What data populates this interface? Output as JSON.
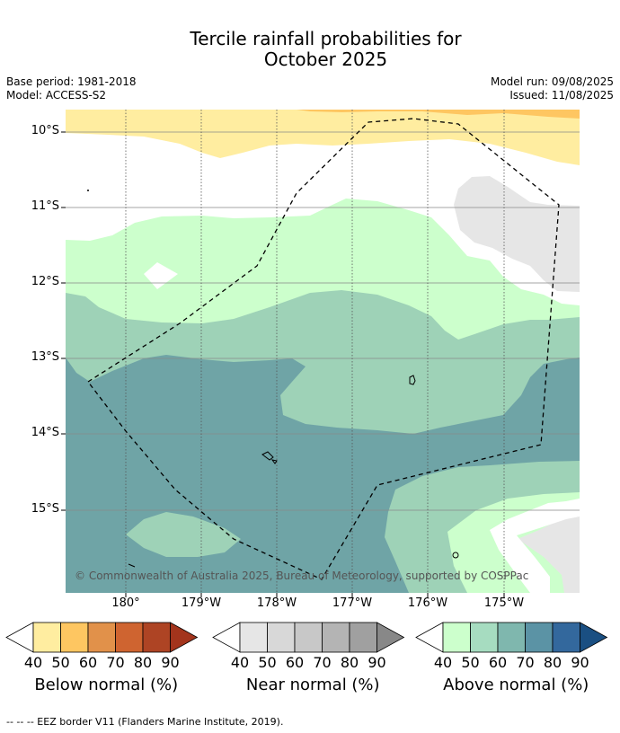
{
  "title": {
    "line1": "Tercile rainfall probabilities for",
    "line2": "October 2025"
  },
  "meta": {
    "base_period": "Base period: 1981-2018",
    "model": "Model: ACCESS-S2",
    "model_run": "Model run: 09/08/2025",
    "issued": "Issued: 11/08/2025"
  },
  "map": {
    "lat_labels": [
      "10°S",
      "11°S",
      "12°S",
      "13°S",
      "14°S",
      "15°S"
    ],
    "lon_labels": [
      "180°",
      "179°W",
      "178°W",
      "177°W",
      "176°W",
      "175°W"
    ],
    "copyright": "© Commonwealth of Australia 2025, Bureau of Meteorology, supported by COSPPac",
    "colors": {
      "below_40": "#ffeda0",
      "below_50": "#fec661",
      "near_40": "#e6e6e6",
      "above_40": "#ccffcc",
      "above_50": "#9ed2b7",
      "above_60": "#6fa4a6",
      "background": "#ffffff"
    }
  },
  "colorbars": [
    {
      "label": "Below normal (%)",
      "ticks": [
        "40",
        "50",
        "60",
        "70",
        "80",
        "90"
      ],
      "colors": [
        "#ffeda0",
        "#fec661",
        "#e1914a",
        "#cf6430",
        "#ae4424",
        "#a3341c"
      ]
    },
    {
      "label": "Near normal (%)",
      "ticks": [
        "40",
        "50",
        "60",
        "70",
        "80",
        "90"
      ],
      "colors": [
        "#e6e6e6",
        "#d8d8d8",
        "#c8c8c8",
        "#b4b4b4",
        "#a0a0a0",
        "#888888"
      ]
    },
    {
      "label": "Above normal (%)",
      "ticks": [
        "40",
        "50",
        "60",
        "70",
        "80",
        "90"
      ],
      "colors": [
        "#ccffcc",
        "#a6dcc0",
        "#7fb7ae",
        "#5b93a5",
        "#33689d",
        "#1a4f82"
      ]
    }
  ],
  "footer": {
    "eez_note": "--  --  -- EEZ border V11 (Flanders Marine Institute, 2019)."
  }
}
